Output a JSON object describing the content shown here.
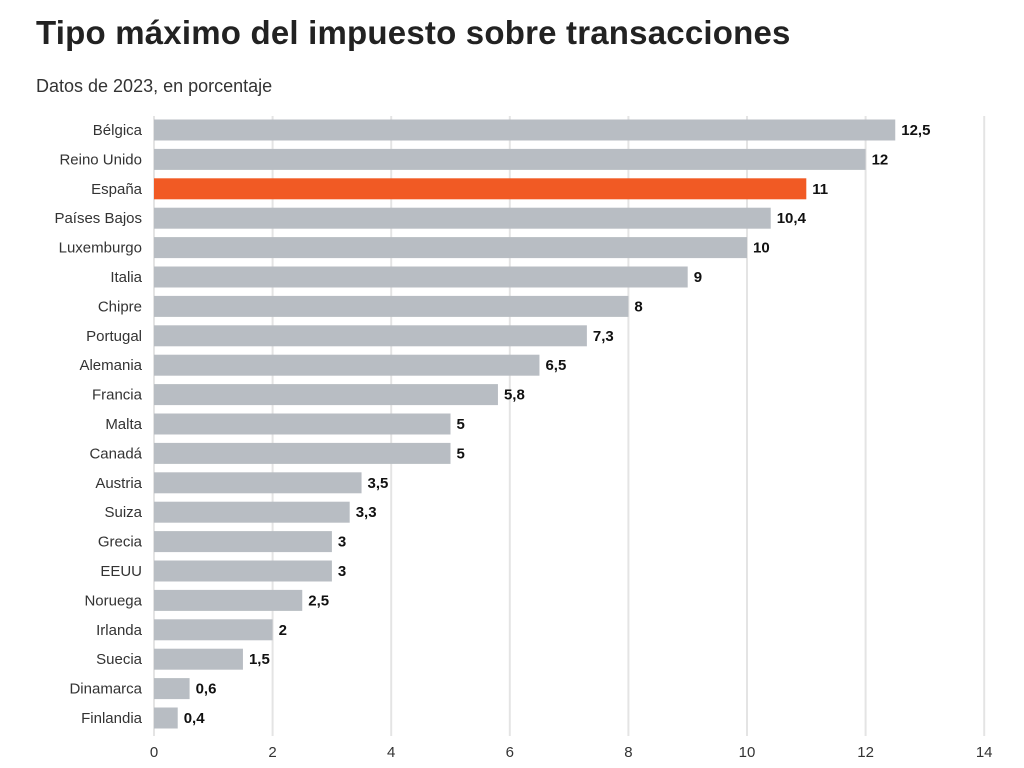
{
  "chart_data": {
    "type": "bar",
    "orientation": "horizontal",
    "title": "Tipo máximo del impuesto sobre transacciones",
    "subtitle": "Datos de 2023, en porcentaje",
    "xlabel": "",
    "ylabel": "",
    "xlim": [
      0,
      14
    ],
    "x_ticks": [
      "0",
      "2",
      "4",
      "6",
      "8",
      "10",
      "12",
      "14"
    ],
    "grid": true,
    "bar_color": "#b8bdc3",
    "highlight_color": "#f15a24",
    "highlight_category": "España",
    "categories": [
      "Bélgica",
      "Reino Unido",
      "España",
      "Países Bajos",
      "Luxemburgo",
      "Italia",
      "Chipre",
      "Portugal",
      "Alemania",
      "Francia",
      "Malta",
      "Canadá",
      "Austria",
      "Suiza",
      "Grecia",
      "EEUU",
      "Noruega",
      "Irlanda",
      "Suecia",
      "Dinamarca",
      "Finlandia"
    ],
    "values": [
      12.5,
      12,
      11,
      10.4,
      10,
      9,
      8,
      7.3,
      6.5,
      5.8,
      5,
      5,
      3.5,
      3.3,
      3,
      3,
      2.5,
      2,
      1.5,
      0.6,
      0.4
    ],
    "value_labels": [
      "12,5",
      "12",
      "11",
      "10,4",
      "10",
      "9",
      "8",
      "7,3",
      "6,5",
      "5,8",
      "5",
      "5",
      "3,5",
      "3,3",
      "3",
      "3",
      "2,5",
      "2",
      "1,5",
      "0,6",
      "0,4"
    ]
  }
}
